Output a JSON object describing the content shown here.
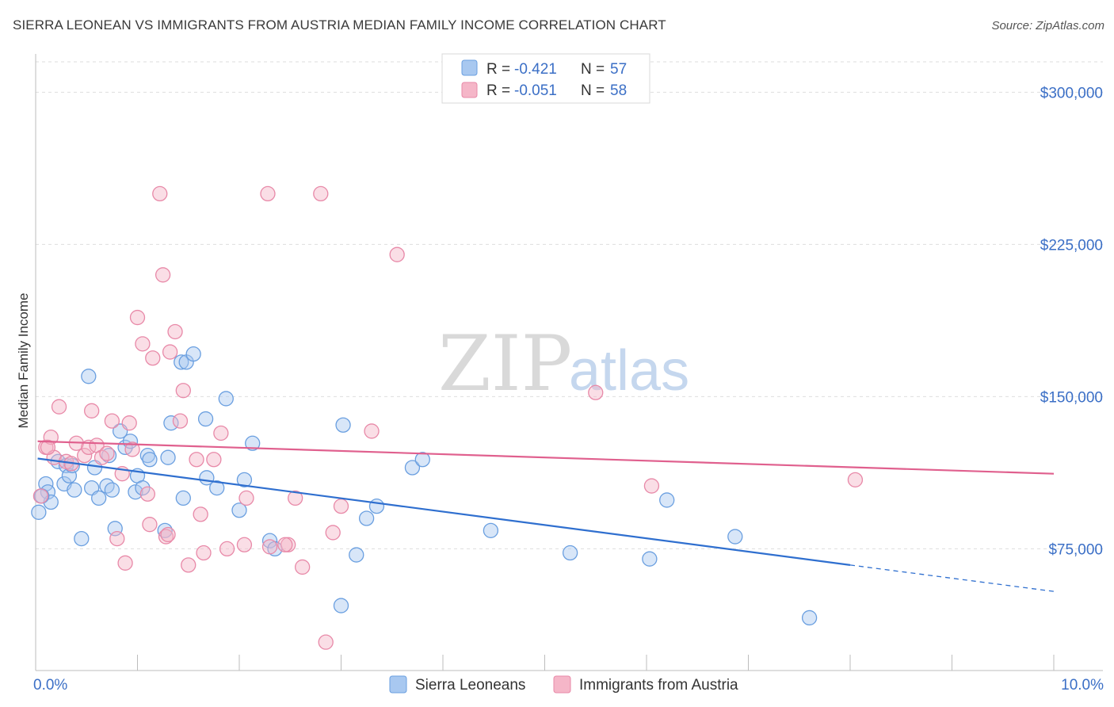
{
  "title": "SIERRA LEONEAN VS IMMIGRANTS FROM AUSTRIA MEDIAN FAMILY INCOME CORRELATION CHART",
  "source": "Source: ZipAtlas.com",
  "watermark": {
    "zip": "ZIP",
    "atlas": "atlas"
  },
  "legend_top": {
    "rows": [
      {
        "r_label": "R = ",
        "r_value": "-0.421",
        "n_label": "N = ",
        "n_value": "57",
        "color": "#a8c8f0"
      },
      {
        "r_label": "R = ",
        "r_value": "-0.051",
        "n_label": "N = ",
        "n_value": "58",
        "color": "#f5b6c8"
      }
    ]
  },
  "chart_data": {
    "type": "scatter",
    "xlabel": "",
    "ylabel": "Median Family Income",
    "xlim": [
      0,
      10
    ],
    "ylim": [
      15000,
      315000
    ],
    "x_tick_labels": [
      "0.0%",
      "10.0%"
    ],
    "y_ticks": [
      75000,
      150000,
      225000,
      300000
    ],
    "y_tick_labels": [
      "$75,000",
      "$150,000",
      "$225,000",
      "$300,000"
    ],
    "grid": true,
    "legend_position": "top-center",
    "series": [
      {
        "name": "Sierra Leoneans",
        "color": "#a8c8f0",
        "stroke": "#6a9fe0",
        "line_color": "#2f6fcf",
        "trend": {
          "x0": 0.02,
          "y0": 119500,
          "x1": 8.0,
          "y1": 67000,
          "dash_x1": 10.0,
          "dash_y1": 54000
        },
        "points": [
          [
            0.03,
            93000
          ],
          [
            0.1,
            107000
          ],
          [
            0.12,
            103000
          ],
          [
            0.15,
            98000
          ],
          [
            0.22,
            118000
          ],
          [
            0.28,
            107000
          ],
          [
            0.3,
            116000
          ],
          [
            0.33,
            111000
          ],
          [
            0.38,
            104000
          ],
          [
            0.45,
            80000
          ],
          [
            0.52,
            160000
          ],
          [
            0.55,
            105000
          ],
          [
            0.58,
            115000
          ],
          [
            0.62,
            100000
          ],
          [
            0.7,
            106000
          ],
          [
            0.72,
            121000
          ],
          [
            0.75,
            104000
          ],
          [
            0.78,
            85000
          ],
          [
            0.83,
            133000
          ],
          [
            0.88,
            125000
          ],
          [
            0.93,
            128000
          ],
          [
            0.98,
            103000
          ],
          [
            1.0,
            111000
          ],
          [
            1.05,
            105000
          ],
          [
            1.1,
            121000
          ],
          [
            1.12,
            119000
          ],
          [
            1.27,
            84000
          ],
          [
            1.3,
            120000
          ],
          [
            1.33,
            137000
          ],
          [
            1.45,
            100000
          ],
          [
            1.43,
            167000
          ],
          [
            1.48,
            167000
          ],
          [
            1.55,
            171000
          ],
          [
            1.67,
            139000
          ],
          [
            1.68,
            110000
          ],
          [
            1.78,
            105000
          ],
          [
            1.87,
            149000
          ],
          [
            2.0,
            94000
          ],
          [
            2.05,
            109000
          ],
          [
            2.13,
            127000
          ],
          [
            2.3,
            79000
          ],
          [
            2.35,
            75000
          ],
          [
            3.02,
            136000
          ],
          [
            3.0,
            47000
          ],
          [
            3.15,
            72000
          ],
          [
            3.25,
            90000
          ],
          [
            3.35,
            96000
          ],
          [
            3.7,
            115000
          ],
          [
            3.8,
            119000
          ],
          [
            4.47,
            84000
          ],
          [
            5.25,
            73000
          ],
          [
            6.03,
            70000
          ],
          [
            6.2,
            99000
          ],
          [
            6.87,
            81000
          ],
          [
            7.6,
            41000
          ],
          [
            0.06,
            101000
          ],
          [
            0.36,
            116000
          ]
        ]
      },
      {
        "name": "Immigrants from Austria",
        "color": "#f5b6c8",
        "stroke": "#e889a8",
        "line_color": "#e0608e",
        "trend": {
          "x0": 0.02,
          "y0": 128000,
          "x1": 10.0,
          "y1": 112000
        },
        "points": [
          [
            0.05,
            101000
          ],
          [
            0.1,
            125000
          ],
          [
            0.15,
            130000
          ],
          [
            0.18,
            120000
          ],
          [
            0.23,
            145000
          ],
          [
            0.3,
            118000
          ],
          [
            0.35,
            117000
          ],
          [
            0.4,
            127000
          ],
          [
            0.48,
            121000
          ],
          [
            0.52,
            125000
          ],
          [
            0.55,
            143000
          ],
          [
            0.6,
            126000
          ],
          [
            0.65,
            120000
          ],
          [
            0.7,
            122000
          ],
          [
            0.75,
            138000
          ],
          [
            0.8,
            80000
          ],
          [
            0.85,
            112000
          ],
          [
            0.88,
            68000
          ],
          [
            0.92,
            137000
          ],
          [
            0.95,
            124000
          ],
          [
            1.0,
            189000
          ],
          [
            1.05,
            176000
          ],
          [
            1.1,
            102000
          ],
          [
            1.12,
            87000
          ],
          [
            1.15,
            169000
          ],
          [
            1.25,
            210000
          ],
          [
            1.22,
            250000
          ],
          [
            1.28,
            81000
          ],
          [
            1.3,
            82000
          ],
          [
            1.32,
            172000
          ],
          [
            1.37,
            182000
          ],
          [
            1.42,
            138000
          ],
          [
            1.45,
            153000
          ],
          [
            1.5,
            67000
          ],
          [
            1.58,
            119000
          ],
          [
            1.62,
            92000
          ],
          [
            1.65,
            73000
          ],
          [
            1.75,
            119000
          ],
          [
            1.82,
            132000
          ],
          [
            1.88,
            75000
          ],
          [
            2.05,
            77000
          ],
          [
            2.07,
            100000
          ],
          [
            2.28,
            250000
          ],
          [
            2.3,
            76000
          ],
          [
            2.48,
            77000
          ],
          [
            2.55,
            100000
          ],
          [
            2.62,
            66000
          ],
          [
            2.8,
            250000
          ],
          [
            2.85,
            29000
          ],
          [
            2.92,
            83000
          ],
          [
            3.0,
            96000
          ],
          [
            3.3,
            133000
          ],
          [
            3.55,
            220000
          ],
          [
            5.5,
            152000
          ],
          [
            6.05,
            106000
          ],
          [
            8.05,
            109000
          ],
          [
            0.12,
            125000
          ],
          [
            2.45,
            77000
          ]
        ]
      }
    ]
  },
  "bottom_legend": [
    {
      "label": "Sierra Leoneans",
      "color": "#a8c8f0"
    },
    {
      "label": "Immigrants from Austria",
      "color": "#f5b6c8"
    }
  ]
}
